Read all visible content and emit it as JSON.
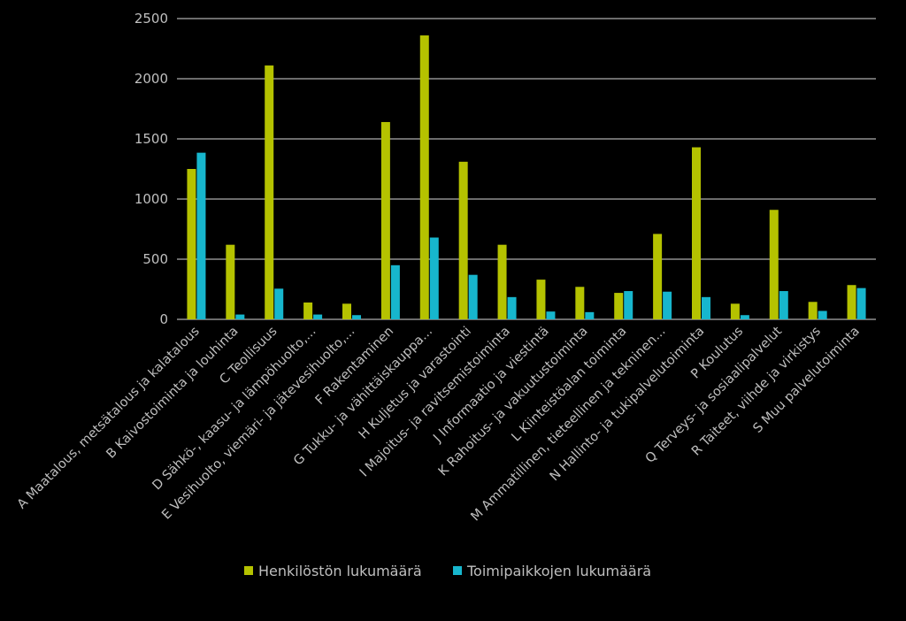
{
  "chart_data": {
    "type": "bar",
    "categories": [
      "A Maatalous, metsätalous ja kalatalous",
      "B Kaivostoiminta ja louhinta",
      "C Teollisuus",
      "D Sähkö-, kaasu- ja lämpöhuolto,...",
      "E Vesihuolto, viemäri- ja jätevesihuolto,...",
      "F Rakentaminen",
      "G Tukku- ja vähittäiskauppa...",
      "H Kuljetus ja varastointi",
      "I Majoitus- ja ravitsemistoiminta",
      "J Informaatio ja viestintä",
      "K Rahoitus- ja vakuutustoiminta",
      "L Kiinteistöalan toiminta",
      "M Ammatillinen, tieteellinen ja tekninen...",
      "N Hallinto- ja tukipalvelutoiminta",
      "P Koulutus",
      "Q Terveys- ja sosiaalipalvelut",
      "R Taiteet, viihde ja virkistys",
      "S Muu palvelutoiminta"
    ],
    "series": [
      {
        "name": "Henkilöstön lukumäärä",
        "color": "#b5c200",
        "values": [
          1250,
          620,
          2110,
          140,
          130,
          1640,
          2360,
          1310,
          620,
          330,
          270,
          220,
          710,
          1430,
          130,
          910,
          145,
          285
        ]
      },
      {
        "name": "Toimipaikkojen lukumäärä",
        "color": "#17b6cd",
        "values": [
          1385,
          40,
          255,
          40,
          35,
          450,
          680,
          370,
          185,
          65,
          60,
          235,
          230,
          185,
          35,
          235,
          70,
          260
        ]
      }
    ],
    "y_ticks": [
      "0",
      "500",
      "1000",
      "1500",
      "2000",
      "2500"
    ],
    "ylim": [
      0,
      2500
    ],
    "grid": true,
    "legend": "bottom-center",
    "title": "",
    "xlabel": "",
    "ylabel": ""
  }
}
